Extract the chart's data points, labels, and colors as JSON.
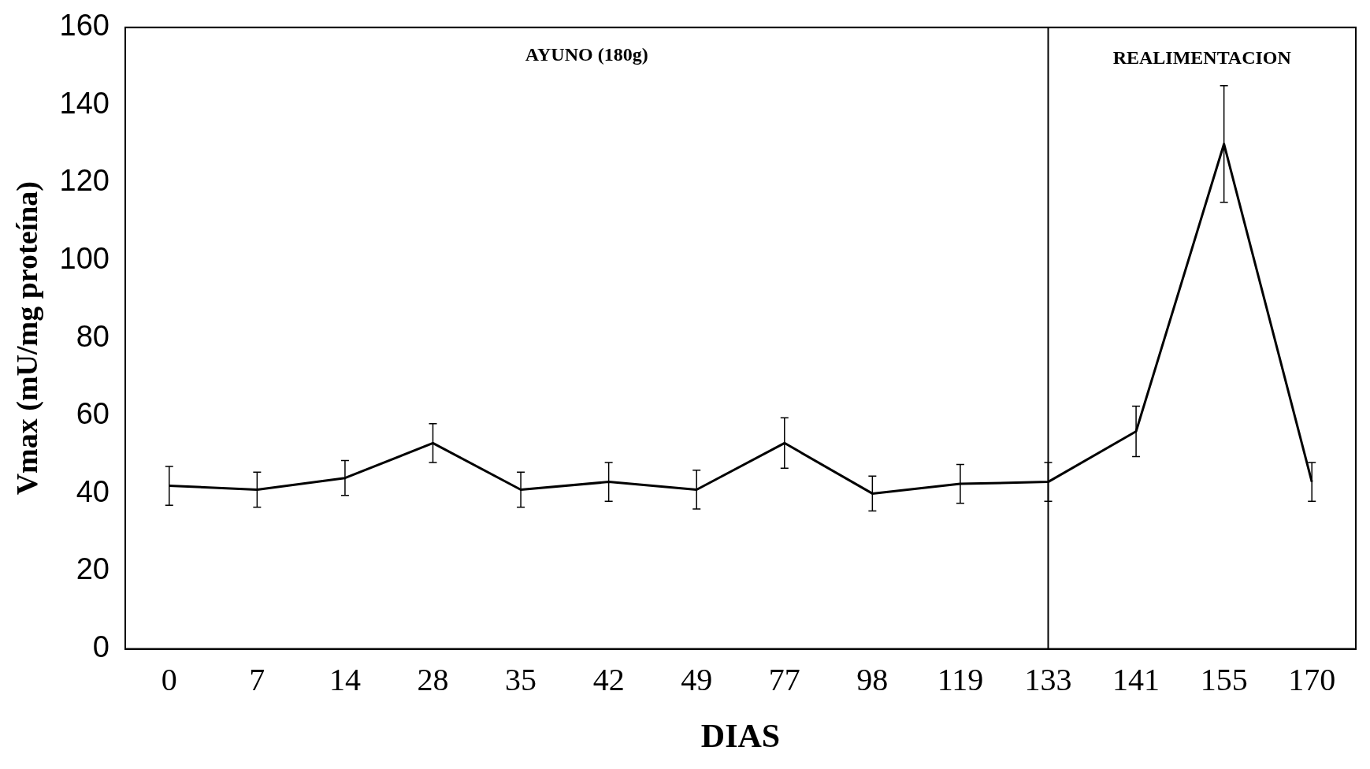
{
  "chart_data": {
    "type": "line",
    "xlabel": "DIAS",
    "ylabel": "Vmax (mU/mg proteína)",
    "categories": [
      "0",
      "7",
      "14",
      "28",
      "35",
      "42",
      "49",
      "77",
      "98",
      "119",
      "133",
      "141",
      "155",
      "170"
    ],
    "series": [
      {
        "color": "#000000",
        "values": [
          42,
          41,
          44,
          53,
          41,
          43,
          41,
          53,
          40,
          42.5,
          43,
          56,
          130,
          43
        ],
        "errors": [
          5,
          4.5,
          4.5,
          5,
          4.5,
          5,
          5,
          6.5,
          4.5,
          5,
          5,
          6.5,
          15,
          5
        ]
      }
    ],
    "ylim": [
      0,
      160
    ],
    "yticks": [
      0,
      20,
      40,
      60,
      80,
      100,
      120,
      140,
      160
    ],
    "grid": false,
    "legend": false,
    "marker": "none",
    "ref_lines": [
      {
        "axis": "x",
        "value": "133",
        "color": "#000000"
      }
    ],
    "annotations": [
      "AYUNO (180g)",
      "REALIMENTACION"
    ]
  }
}
